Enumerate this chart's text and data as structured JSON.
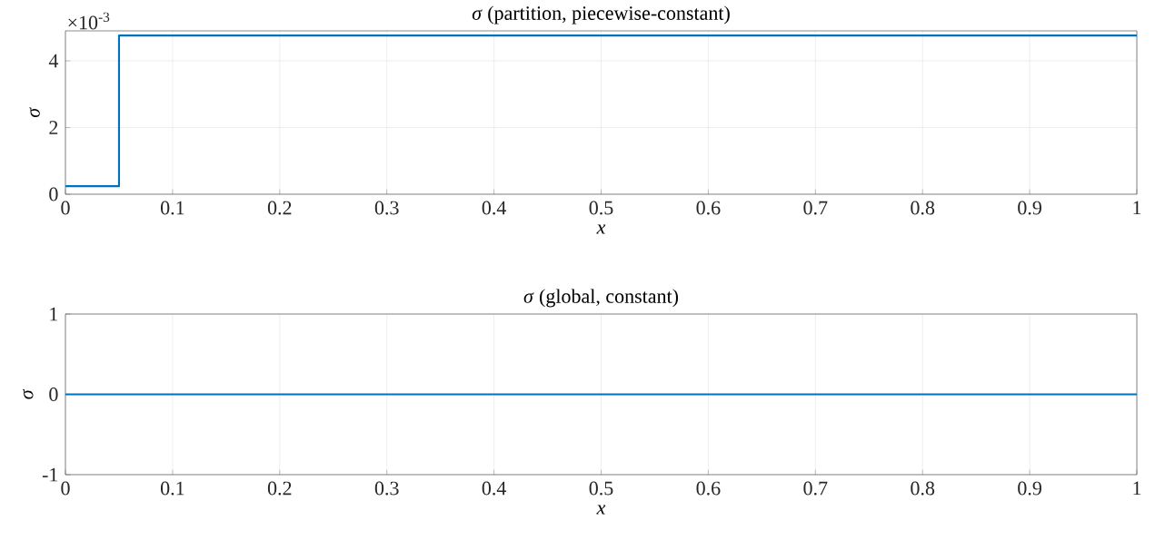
{
  "chart_data": [
    {
      "type": "line",
      "title": "*σ* (partition, piecewise-constant)",
      "xlabel": "*x*",
      "ylabel": "*σ*",
      "annotations": [
        "×10$^{-3}$"
      ],
      "x": [
        0,
        0.05,
        0.05,
        1
      ],
      "series": [
        {
          "color": "#0072bd",
          "values": [
            0.24,
            0.24,
            4.76,
            4.76
          ]
        }
      ],
      "xlim": [
        0,
        1
      ],
      "ylim": [
        0,
        4.9
      ],
      "xticks": [
        0,
        0.1,
        0.2,
        0.3,
        0.4,
        0.5,
        0.6,
        0.7,
        0.8,
        0.9,
        1
      ],
      "yticks": [
        0,
        2,
        4
      ],
      "grid": true
    },
    {
      "type": "line",
      "title": "*σ* (global, constant)",
      "xlabel": "*x*",
      "ylabel": "*σ*",
      "x": [
        0,
        1
      ],
      "series": [
        {
          "color": "#0072bd",
          "values": [
            0,
            0
          ]
        }
      ],
      "xlim": [
        0,
        1
      ],
      "ylim": [
        -1,
        1
      ],
      "xticks": [
        0,
        0.1,
        0.2,
        0.3,
        0.4,
        0.5,
        0.6,
        0.7,
        0.8,
        0.9,
        1
      ],
      "yticks": [
        -1,
        0,
        1
      ],
      "grid": true
    }
  ]
}
